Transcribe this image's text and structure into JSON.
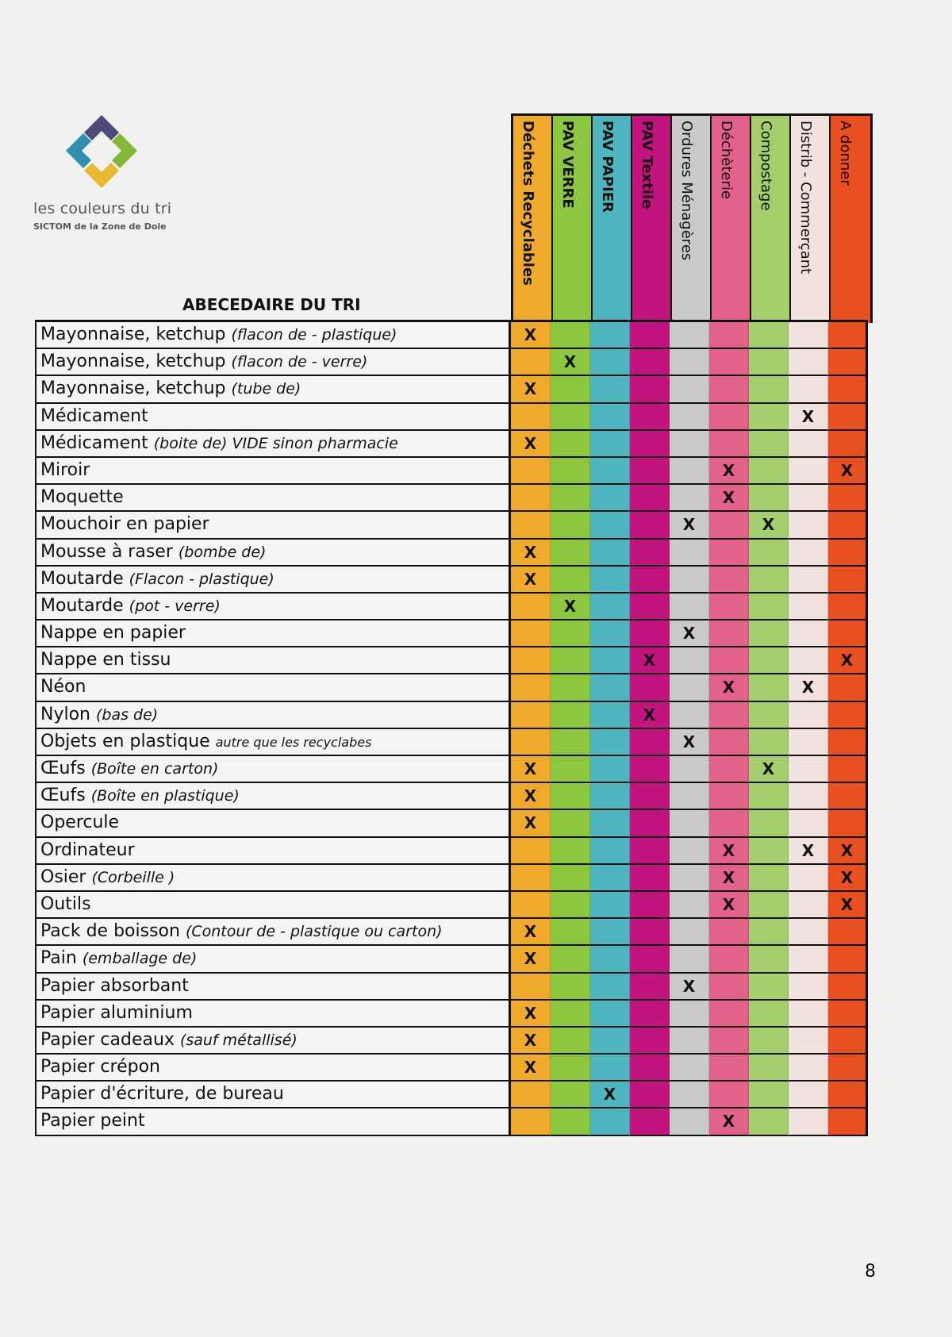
{
  "brand": {
    "name": "les couleurs du tri",
    "subtitle": "SICTOM de la Zone de Dole"
  },
  "title": "ABECEDAIRE DU TRI",
  "columns": [
    {
      "label": "Déchets Recyclables",
      "color": "#f0aa2b"
    },
    {
      "label": "PAV VERRE",
      "color": "#8dc63f"
    },
    {
      "label": "PAV PAPIER",
      "color": "#4fb6c0"
    },
    {
      "label": "PAV Textile",
      "color": "#c2147f"
    },
    {
      "label": "Ordures Ménagères",
      "color": "#c9cacc"
    },
    {
      "label": "Déchèterie",
      "color": "#e3628b"
    },
    {
      "label": "Compostage",
      "color": "#a4cf6c"
    },
    {
      "label": "Distrib - Commerçant",
      "color": "#f1e2dd"
    },
    {
      "label": "A donner",
      "color": "#e8501f"
    }
  ],
  "mark": "X",
  "rows": [
    {
      "name": "Mayonnaise, ketchup",
      "note": "(flacon de - plastique)",
      "marks": [
        0
      ]
    },
    {
      "name": "Mayonnaise, ketchup",
      "note": "(flacon de - verre)",
      "marks": [
        1
      ]
    },
    {
      "name": "Mayonnaise, ketchup",
      "note": "(tube de)",
      "marks": [
        0
      ]
    },
    {
      "name": "Médicament",
      "note": "",
      "marks": [
        7
      ]
    },
    {
      "name": "Médicament",
      "note": "(boite de) VIDE sinon pharmacie",
      "marks": [
        0
      ]
    },
    {
      "name": "Miroir",
      "note": "",
      "marks": [
        5,
        8
      ]
    },
    {
      "name": "Moquette",
      "note": "",
      "marks": [
        5
      ]
    },
    {
      "name": "Mouchoir en papier",
      "note": "",
      "marks": [
        4,
        6
      ]
    },
    {
      "name": "Mousse à raser",
      "note": "(bombe de)",
      "marks": [
        0
      ]
    },
    {
      "name": "Moutarde",
      "note": "(Flacon - plastique)",
      "marks": [
        0
      ]
    },
    {
      "name": "Moutarde",
      "note": "(pot - verre)",
      "marks": [
        1
      ]
    },
    {
      "name": "Nappe en papier",
      "note": "",
      "marks": [
        4
      ]
    },
    {
      "name": "Nappe en tissu",
      "note": "",
      "marks": [
        3,
        8
      ]
    },
    {
      "name": "Néon",
      "note": "",
      "marks": [
        5,
        7
      ]
    },
    {
      "name": "Nylon",
      "note": "(bas de)",
      "marks": [
        3
      ]
    },
    {
      "name": "Objets en plastique",
      "note": "autre que les recyclabes",
      "marks": [
        4
      ],
      "small": true
    },
    {
      "name": "Œufs",
      "note": "(Boîte en carton)",
      "marks": [
        0,
        6
      ]
    },
    {
      "name": "Œufs",
      "note": "(Boîte en plastique)",
      "marks": [
        0
      ]
    },
    {
      "name": "Opercule",
      "note": "",
      "marks": [
        0
      ]
    },
    {
      "name": "Ordinateur",
      "note": "",
      "marks": [
        5,
        7,
        8
      ]
    },
    {
      "name": "Osier",
      "note": "(Corbeille )",
      "marks": [
        5,
        8
      ]
    },
    {
      "name": "Outils",
      "note": "",
      "marks": [
        5,
        8
      ]
    },
    {
      "name": "Pack de boisson",
      "note": "(Contour de - plastique ou carton)",
      "marks": [
        0
      ]
    },
    {
      "name": "Pain",
      "note": "(emballage de)",
      "marks": [
        0
      ]
    },
    {
      "name": "Papier absorbant",
      "note": "",
      "marks": [
        4
      ]
    },
    {
      "name": "Papier aluminium",
      "note": "",
      "marks": [
        0
      ]
    },
    {
      "name": "Papier cadeaux",
      "note": "(sauf métallisé)",
      "marks": [
        0
      ]
    },
    {
      "name": "Papier crépon",
      "note": "",
      "marks": [
        0
      ]
    },
    {
      "name": "Papier d'écriture, de bureau",
      "note": "",
      "marks": [
        2
      ]
    },
    {
      "name": "Papier peint",
      "note": "",
      "marks": [
        5
      ]
    }
  ],
  "page_number": "8"
}
